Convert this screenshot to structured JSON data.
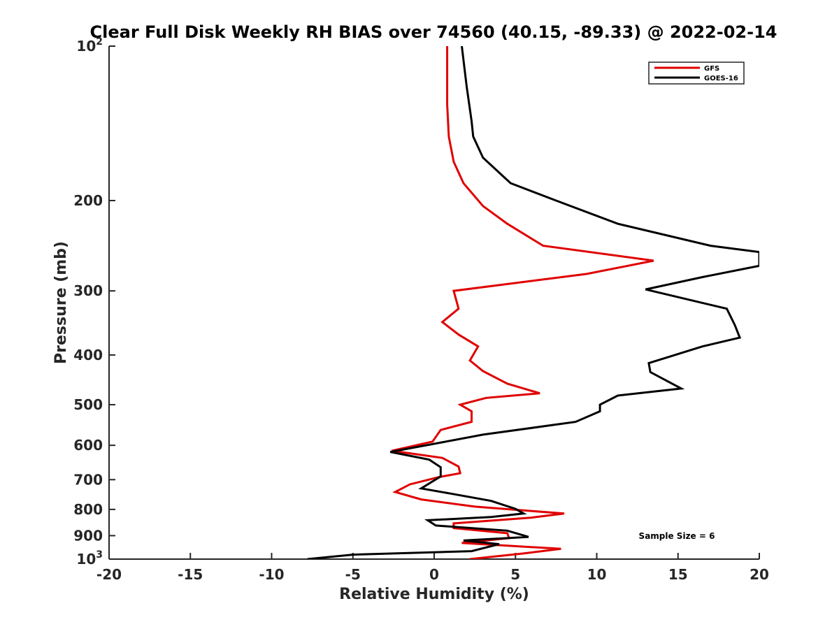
{
  "chart_data": {
    "type": "line",
    "title": "Clear Full Disk Weekly RH BIAS over 74560 (40.15, -89.33) @ 2022-02-14",
    "xlabel": "Relative Humidity (%)",
    "ylabel": "Pressure (mb)",
    "xlim": [
      -20,
      20
    ],
    "ylim": [
      100,
      1000
    ],
    "y_scale": "log",
    "y_reversed": true,
    "x_ticks": [
      -20,
      -15,
      -10,
      -5,
      0,
      5,
      10,
      15,
      20
    ],
    "y_ticks": [
      {
        "value": 100,
        "base": "10",
        "exp": "2"
      },
      {
        "value": 200,
        "label": "200"
      },
      {
        "value": 300,
        "label": "300"
      },
      {
        "value": 400,
        "label": "400"
      },
      {
        "value": 500,
        "label": "500"
      },
      {
        "value": 600,
        "label": "600"
      },
      {
        "value": 700,
        "label": "700"
      },
      {
        "value": 800,
        "label": "800"
      },
      {
        "value": 900,
        "label": "900"
      },
      {
        "value": 1000,
        "base": "10",
        "exp": "3"
      }
    ],
    "legend_position": "top-right",
    "grid": false,
    "annotation": "Sample Size = 6",
    "series": [
      {
        "name": "GFS",
        "color": "#e00000",
        "points": [
          [
            0.8,
            100
          ],
          [
            0.8,
            115
          ],
          [
            0.8,
            130
          ],
          [
            0.9,
            150
          ],
          [
            1.2,
            168
          ],
          [
            1.8,
            185
          ],
          [
            3.0,
            205
          ],
          [
            4.5,
            222
          ],
          [
            6.7,
            245
          ],
          [
            13.5,
            262
          ],
          [
            9.4,
            278
          ],
          [
            1.2,
            300
          ],
          [
            1.5,
            325
          ],
          [
            0.5,
            345
          ],
          [
            1.5,
            365
          ],
          [
            2.7,
            385
          ],
          [
            2.2,
            410
          ],
          [
            3.0,
            430
          ],
          [
            4.5,
            455
          ],
          [
            6.5,
            475
          ],
          [
            3.2,
            485
          ],
          [
            1.6,
            500
          ],
          [
            2.3,
            515
          ],
          [
            2.3,
            540
          ],
          [
            0.4,
            560
          ],
          [
            -0.1,
            590
          ],
          [
            -2.6,
            615
          ],
          [
            0.5,
            635
          ],
          [
            1.5,
            660
          ],
          [
            1.6,
            680
          ],
          [
            0.3,
            692
          ],
          [
            -1.5,
            715
          ],
          [
            -2.4,
            740
          ],
          [
            -0.8,
            765
          ],
          [
            2.5,
            790
          ],
          [
            8.0,
            815
          ],
          [
            6.0,
            830
          ],
          [
            1.2,
            852
          ],
          [
            1.2,
            870
          ],
          [
            4.5,
            890
          ],
          [
            4.6,
            910
          ],
          [
            1.7,
            930
          ],
          [
            7.8,
            955
          ],
          [
            5.5,
            975
          ],
          [
            2.2,
            1000
          ]
        ]
      },
      {
        "name": "GOES-16",
        "color": "#000000",
        "points": [
          [
            1.7,
            100
          ],
          [
            2.0,
            120
          ],
          [
            2.3,
            140
          ],
          [
            2.4,
            150
          ],
          [
            3.0,
            165
          ],
          [
            4.7,
            185
          ],
          [
            7.5,
            200
          ],
          [
            11.3,
            222
          ],
          [
            17.0,
            245
          ],
          [
            20.0,
            252
          ],
          [
            20.0,
            268
          ],
          [
            16.5,
            282
          ],
          [
            13.0,
            298
          ],
          [
            18.0,
            325
          ],
          [
            18.5,
            350
          ],
          [
            18.8,
            370
          ],
          [
            16.5,
            385
          ],
          [
            13.2,
            415
          ],
          [
            13.3,
            432
          ],
          [
            15.2,
            465
          ],
          [
            11.3,
            480
          ],
          [
            10.2,
            500
          ],
          [
            10.2,
            515
          ],
          [
            8.7,
            540
          ],
          [
            3.0,
            572
          ],
          [
            -0.5,
            600
          ],
          [
            -2.7,
            618
          ],
          [
            -0.3,
            640
          ],
          [
            0.4,
            662
          ],
          [
            0.4,
            690
          ],
          [
            -0.8,
            728
          ],
          [
            1.0,
            745
          ],
          [
            3.5,
            770
          ],
          [
            5.0,
            798
          ],
          [
            5.5,
            815
          ],
          [
            3.5,
            828
          ],
          [
            -0.4,
            840
          ],
          [
            0.1,
            860
          ],
          [
            4.5,
            880
          ],
          [
            5.8,
            905
          ],
          [
            1.8,
            920
          ],
          [
            4.0,
            935
          ],
          [
            2.3,
            965
          ],
          [
            -5.0,
            980
          ],
          [
            -7.8,
            1000
          ]
        ]
      }
    ]
  }
}
